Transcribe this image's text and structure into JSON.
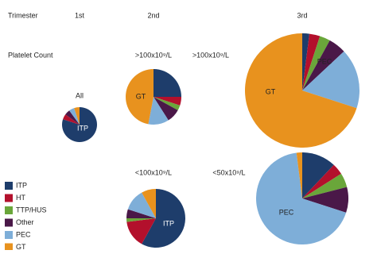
{
  "header": {
    "row_label": "Trimester",
    "columns": [
      "1st",
      "2nd",
      "3rd"
    ],
    "count_label": "Platelet Count"
  },
  "chart_data": [
    {
      "type": "pie",
      "title": "All",
      "categories": [
        "ITP",
        "HT",
        "TTP/HUS",
        "Other",
        "PEC",
        "GT"
      ],
      "colors": [
        "#1e3d6b",
        "#b3102c",
        "#6aa63a",
        "#4a1848",
        "#7eaed8",
        "#e8921e"
      ],
      "values": [
        80,
        5,
        0,
        5,
        5,
        5
      ]
    },
    {
      "type": "pie",
      "title": ">100x10⁹/L",
      "categories": [
        "ITP",
        "HT",
        "TTP/HUS",
        "Other",
        "PEC",
        "GT"
      ],
      "colors": [
        "#1e3d6b",
        "#b3102c",
        "#6aa63a",
        "#4a1848",
        "#7eaed8",
        "#e8921e"
      ],
      "values": [
        25,
        5,
        3,
        8,
        12,
        47
      ]
    },
    {
      "type": "pie",
      "title": ">100x10⁹/L",
      "categories": [
        "ITP",
        "HT",
        "TTP/HUS",
        "Other",
        "PEC",
        "GT"
      ],
      "colors": [
        "#1e3d6b",
        "#b3102c",
        "#6aa63a",
        "#4a1848",
        "#7eaed8",
        "#e8921e"
      ],
      "values": [
        2,
        3,
        3,
        5,
        17,
        70
      ]
    },
    {
      "type": "pie",
      "title": "<100x10⁹/L",
      "categories": [
        "ITP",
        "HT",
        "TTP/HUS",
        "Other",
        "PEC",
        "GT"
      ],
      "colors": [
        "#1e3d6b",
        "#b3102c",
        "#6aa63a",
        "#4a1848",
        "#7eaed8",
        "#e8921e"
      ],
      "values": [
        58,
        15,
        2,
        5,
        12,
        8
      ]
    },
    {
      "type": "pie",
      "title": "<50x10⁹/L",
      "categories": [
        "ITP",
        "HT",
        "TTP/HUS",
        "Other",
        "PEC",
        "GT"
      ],
      "colors": [
        "#1e3d6b",
        "#b3102c",
        "#6aa63a",
        "#4a1848",
        "#7eaed8",
        "#e8921e"
      ],
      "values": [
        12,
        4,
        5,
        9,
        68,
        2
      ]
    }
  ]
}
